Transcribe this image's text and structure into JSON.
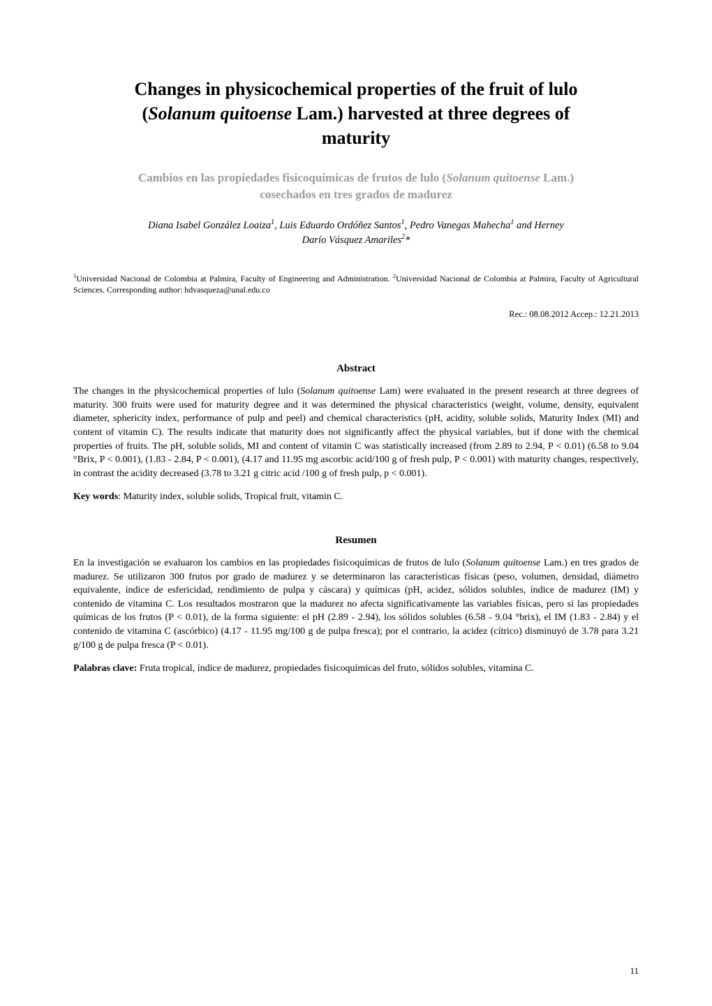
{
  "title_line1": "Changes in physicochemical properties of the fruit of lulo",
  "title_line2_prefix": "(",
  "title_line2_italic": "Solanum quitoense",
  "title_line2_suffix": " Lam.) harvested at three degrees of",
  "title_line3": "maturity",
  "subtitle_line1_prefix": "Cambios en las propiedades fisicoquímicas de frutos de lulo (",
  "subtitle_line1_italic": "Solanum quitoense",
  "subtitle_line1_suffix": " Lam.)",
  "subtitle_line2": "cosechados en tres grados de madurez",
  "authors_prefix": "Diana Isabel González Loaiza",
  "authors_sup1": "1",
  "authors_mid1": ", Luis Eduardo Ordóñez Santos",
  "authors_sup2": "1",
  "authors_mid2": ", Pedro Vanegas Mahecha",
  "authors_sup3": "1",
  "authors_mid3": " and Herney",
  "authors_line2": "Darío Vásquez Amariles",
  "authors_sup4": "2",
  "authors_suffix": "*",
  "affil_sup1": "1",
  "affil_part1": "Universidad Nacional de Colombia at Palmira, Faculty of Engineering and Administration. ",
  "affil_sup2": "2",
  "affil_part2": "Universidad Nacional de Colombia at Palmira, Faculty of Agricultural Sciences. Corresponding author: hdvasqueza@unal.edu.co",
  "dates": "Rec.: 08.08.2012    Accep.: 12.21.2013",
  "abstract_heading": "Abstract",
  "abstract_prefix": "The changes in the physicochemical properties of lulo (",
  "abstract_italic": "Solanum quitoense",
  "abstract_body": " Lam) were evaluated in the present research at three degrees of maturity. 300 fruits were used for maturity degree and it was determined the physical characteristics (weight, volume, density, equivalent diameter, sphericity index, performance of pulp and peel) and chemical characteristics (pH, acidity, soluble solids, Maturity Index (MI) and content of vitamin C). The results indicate that maturity does not significantly affect the physical variables, but if done with the chemical properties of fruits. The pH, soluble solids, MI and content of vitamin C was statistically increased (from 2.89 to 2.94, P < 0.01) (6.58 to 9.04 °Brix, P < 0.001), (1.83 - 2.84, P < 0.001), (4.17 and 11.95 mg ascorbic acid/100 g of fresh pulp, P < 0.001) with maturity changes, respectively, in contrast the acidity decreased (3.78 to 3.21 g citric acid /100 g of fresh pulp, p < 0.001).",
  "keywords_label": "Key words",
  "keywords_text": ": Maturity index, soluble solids, Tropical fruit, vitamin C.",
  "resumen_heading": "Resumen",
  "resumen_prefix": "En la investigación se evaluaron los cambios en las propiedades fisicoquímicas de frutos de lulo (",
  "resumen_italic": "Solanum quitoense",
  "resumen_body": " Lam.) en tres grados de madurez. Se utilizaron 300 frutos por grado de madurez y se determinaron las características físicas (peso, volumen, densidad, diámetro equivalente, índice de esfericidad, rendimiento de pulpa y cáscara) y químicas (pH, acidez, sólidos solubles, índice de madurez (IM) y contenido de vitamina C. Los resultados mostraron que la madurez no afecta significativamente las variables físicas, pero sí las propiedades químicas de los frutos (P < 0.01), de la forma siguiente: el pH (2.89 - 2.94), los sólidos solubles (6.58 - 9.04 °brix), el IM (1.83 - 2.84) y el contenido de vitamina C (ascórbico) (4.17 - 11.95 mg/100 g de pulpa fresca); por el contrario, la acidez (cítrico) disminuyó de 3.78 para 3.21 g/100 g de pulpa fresca (P < 0.01).",
  "palabras_label": "Palabras clave:",
  "palabras_text": " Fruta tropical, índice de madurez, propiedades fisicoquímicas del fruto, sólidos solubles, vitamina C.",
  "page_number": "11"
}
